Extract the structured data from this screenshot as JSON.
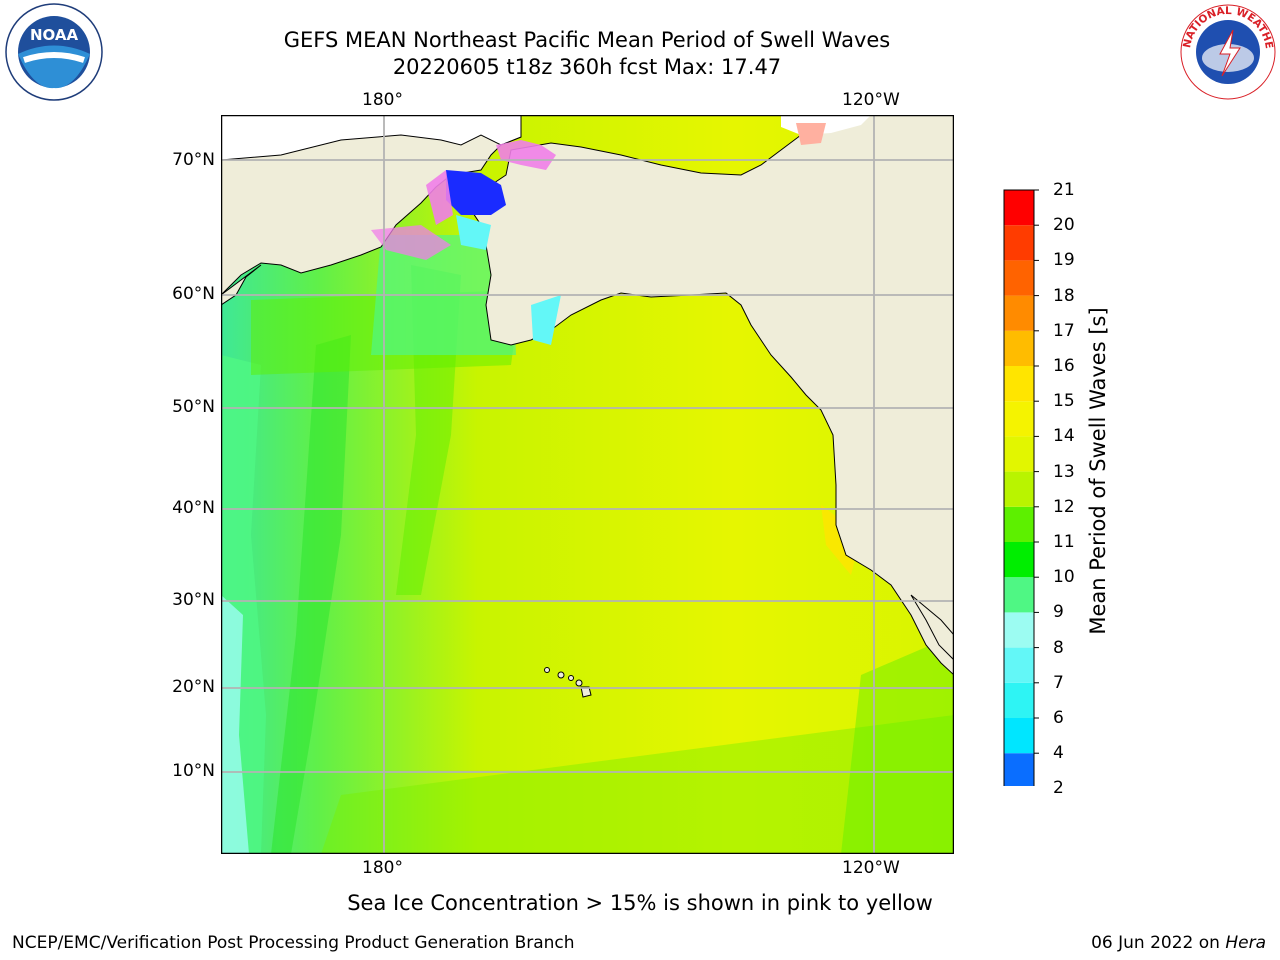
{
  "title": {
    "line1": "GEFS MEAN Northeast Pacific Mean Period of Swell Waves",
    "line2": "20220605 t18z 360h fcst   Max: 17.47"
  },
  "map": {
    "projection": "Plate Carree",
    "lon_labels": [
      "180°",
      "120°W"
    ],
    "lat_labels": [
      "70°N",
      "60°N",
      "50°N",
      "40°N",
      "30°N",
      "20°N",
      "10°N"
    ],
    "land_color": "#efedd9",
    "grid_color": "#b3b3b3",
    "coastline_color": "#000000"
  },
  "colorbar": {
    "label": "Mean Period of Swell Waves [s]",
    "ticks": [
      "2",
      "4",
      "6",
      "7",
      "8",
      "9",
      "10",
      "11",
      "12",
      "13",
      "14",
      "15",
      "16",
      "17",
      "18",
      "19",
      "20",
      "21"
    ],
    "colors": [
      "#0a6eff",
      "#00e6ff",
      "#2ef4f4",
      "#63f7f7",
      "#9cfcf2",
      "#4ff784",
      "#00ee00",
      "#5df000",
      "#b9f400",
      "#e2f600",
      "#f5f300",
      "#ffe500",
      "#ffbc00",
      "#ff8b00",
      "#ff6300",
      "#ff3c00",
      "#ff0000"
    ],
    "extend_color": "#0000ff"
  },
  "ice_note": "Sea Ice Concentration > 15% is shown in pink to yellow",
  "footer": {
    "credit": "NCEP/EMC/Verification Post Processing Product Generation Branch",
    "date": "06 Jun 2022 on ",
    "machine": "Hera"
  },
  "logos": {
    "noaa_text": "NOAA",
    "nws_text": "NATIONAL WEATHER SERVICE"
  }
}
